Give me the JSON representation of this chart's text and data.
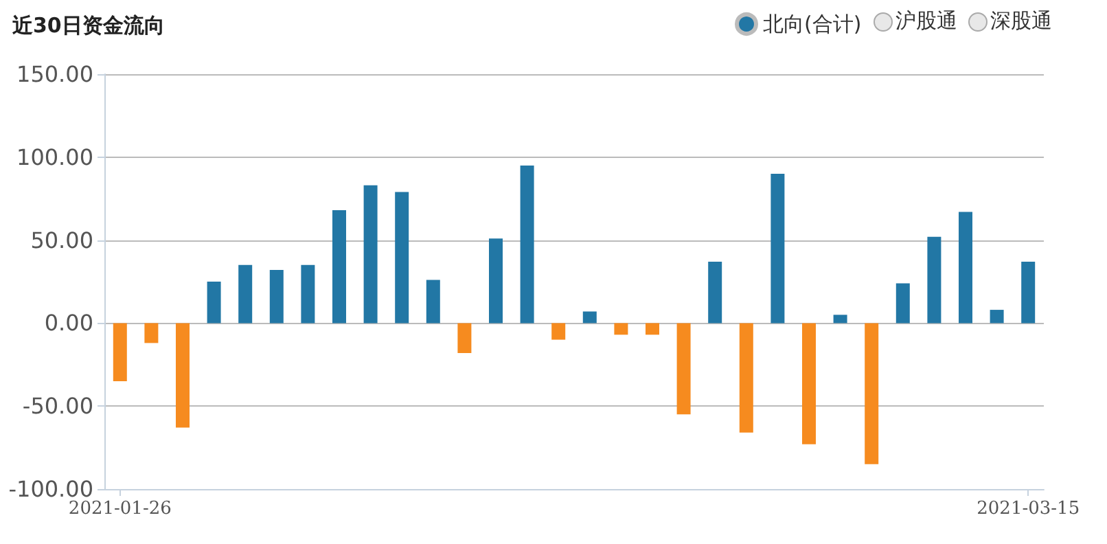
{
  "chart_data": {
    "type": "bar",
    "title": "近30日资金流向",
    "categories": [
      "2021-01-26",
      null,
      null,
      null,
      null,
      null,
      null,
      null,
      null,
      null,
      null,
      null,
      null,
      null,
      null,
      null,
      null,
      null,
      null,
      null,
      null,
      null,
      null,
      null,
      null,
      null,
      null,
      null,
      null,
      "2021-03-15"
    ],
    "series": [
      {
        "name": "北向(合计)",
        "color": "#2277a5",
        "colors": [
          "#f68b1f",
          "#f68b1f",
          "#f68b1f",
          "#2277a5",
          "#2277a5",
          "#2277a5",
          "#2277a5",
          "#2277a5",
          "#2277a5",
          "#2277a5",
          "#2277a5",
          "#f68b1f",
          "#2277a5",
          "#2277a5",
          "#f68b1f",
          "#2277a5",
          "#f68b1f",
          "#f68b1f",
          "#f68b1f",
          "#2277a5",
          "#f68b1f",
          "#2277a5",
          "#f68b1f",
          "#2277a5",
          "#f68b1f",
          "#2277a5",
          "#2277a5",
          "#2277a5",
          "#2277a5",
          "#2277a5"
        ],
        "values": [
          -35,
          -12,
          -63,
          25,
          35,
          32,
          35,
          68,
          83,
          79,
          26,
          -18,
          51,
          95,
          -10,
          7,
          -7,
          -7,
          -55,
          37,
          -66,
          90,
          -73,
          5,
          -85,
          24,
          52,
          67,
          8,
          37
        ]
      }
    ],
    "annotations": [
      "沪股通",
      "深股通"
    ],
    "ylim": [
      -100,
      150
    ],
    "yticks": [
      {
        "value": -100,
        "label": "-100.00"
      },
      {
        "value": -50,
        "label": "-50.00"
      },
      {
        "value": 0,
        "label": "0.00"
      },
      {
        "value": 50,
        "label": "50.00"
      },
      {
        "value": 100,
        "label": "100.00"
      },
      {
        "value": 150,
        "label": "150.00"
      }
    ],
    "grid": "y",
    "legend": "top right"
  }
}
